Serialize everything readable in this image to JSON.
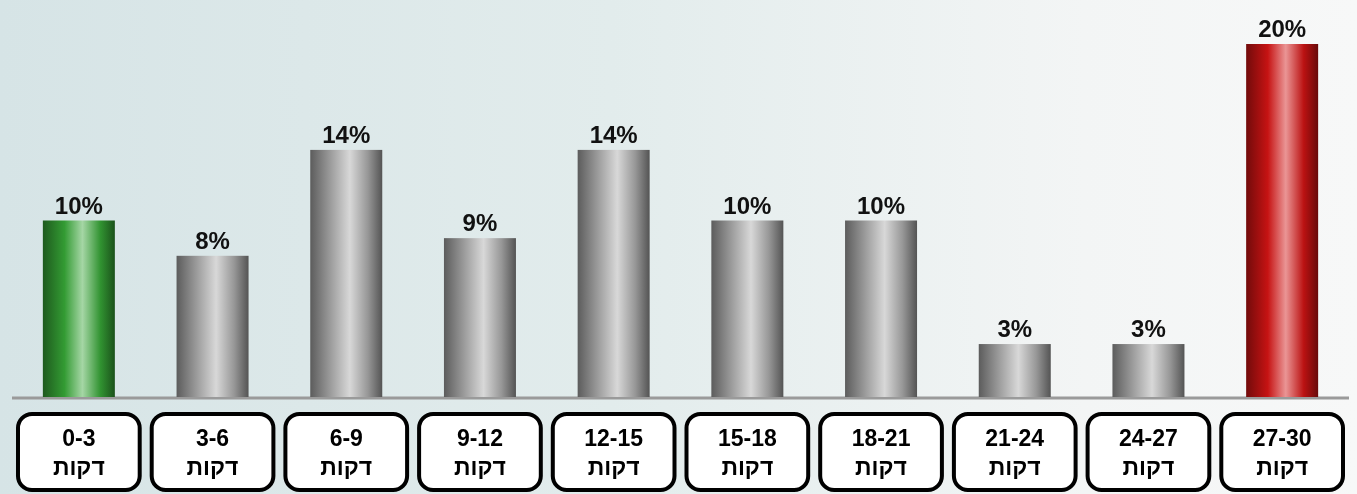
{
  "chart_data": {
    "type": "bar",
    "categories": [
      "0-3 דקות",
      "3-6 דקות",
      "6-9 דקות",
      "9-12 דקות",
      "12-15 דקות",
      "15-18 דקות",
      "18-21 דקות",
      "21-24 דקות",
      "24-27 דקות",
      "27-30 דקות"
    ],
    "values": [
      10,
      8,
      14,
      9,
      14,
      10,
      10,
      3,
      3,
      20
    ],
    "value_labels": [
      "10%",
      "8%",
      "14%",
      "9%",
      "14%",
      "10%",
      "10%",
      "3%",
      "3%",
      "20%"
    ],
    "colors": [
      "#36a336",
      "#a8a8a8",
      "#a8a8a8",
      "#a8a8a8",
      "#a8a8a8",
      "#a8a8a8",
      "#a8a8a8",
      "#a8a8a8",
      "#a8a8a8",
      "#d01414"
    ]
  }
}
